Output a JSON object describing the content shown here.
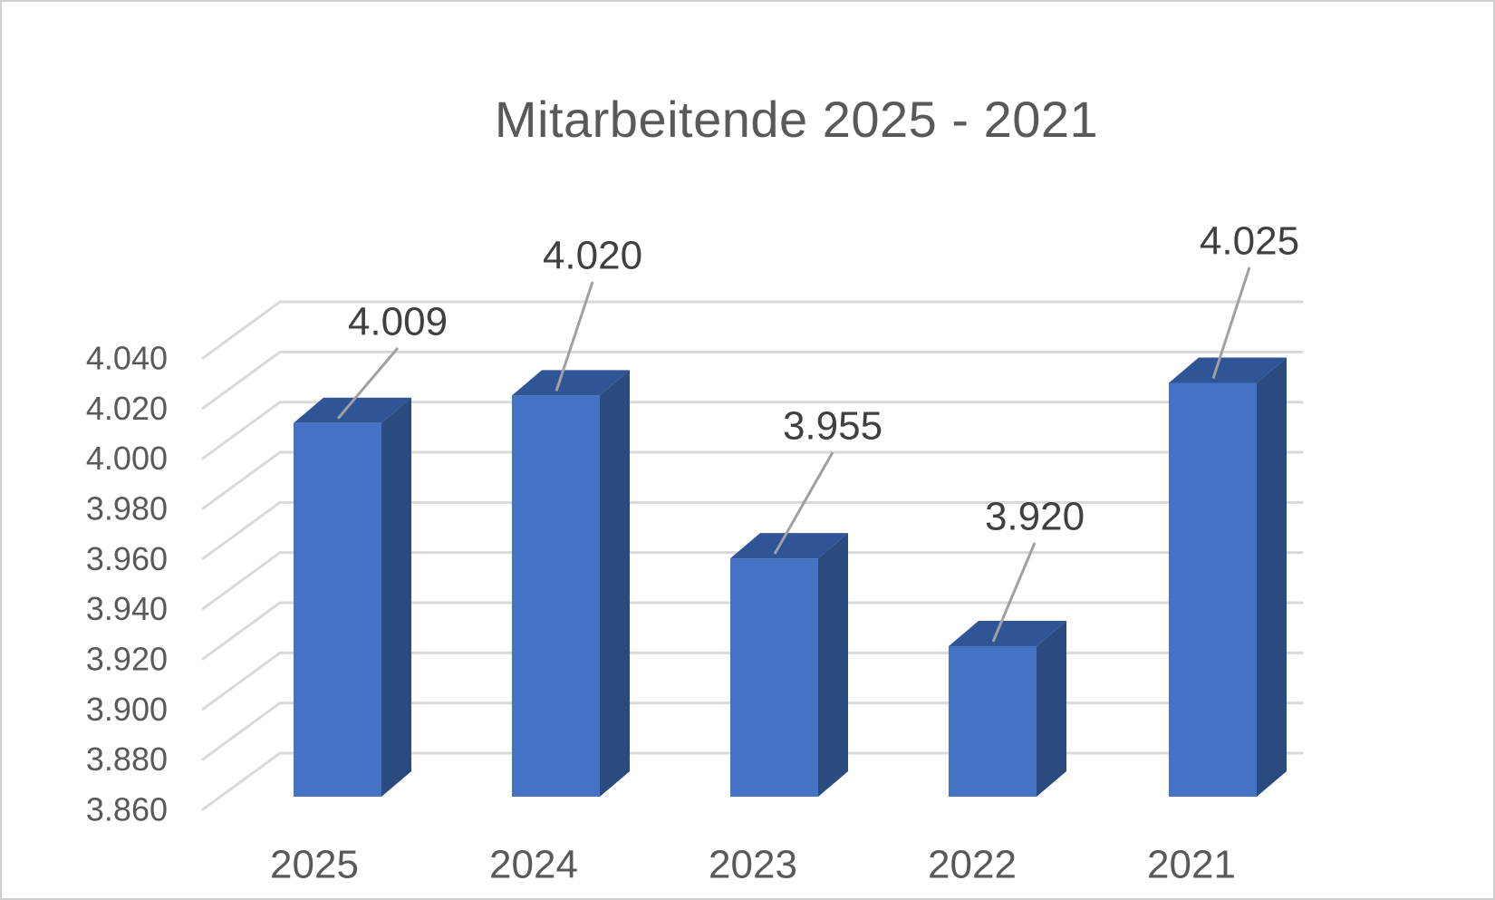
{
  "title": "Mitarbeitende 2025 - 2021",
  "chart_data": {
    "type": "bar",
    "variant": "3d-column",
    "title": "Mitarbeitende 2025 - 2021",
    "categories": [
      "2025",
      "2024",
      "2023",
      "2022",
      "2021"
    ],
    "values": [
      4009,
      4020,
      3955,
      3920,
      4025
    ],
    "data_labels": [
      "4.009",
      "4.020",
      "3.955",
      "3.920",
      "4.025"
    ],
    "series": [
      {
        "name": "Mitarbeitende",
        "values": [
          4009,
          4020,
          3955,
          3920,
          4025
        ]
      }
    ],
    "xlabel": "",
    "ylabel": "",
    "ylim": [
      3860,
      4040
    ],
    "ytick_step": 20,
    "ytick_labels": [
      "3.860",
      "3.880",
      "3.900",
      "3.920",
      "3.940",
      "3.960",
      "3.980",
      "4.000",
      "4.020",
      "4.040"
    ],
    "grid": true,
    "legend": false,
    "number_format": "German thousands separator (dot)",
    "colors": {
      "bar_front": "#4472C4",
      "bar_top": "#2F5597",
      "bar_side": "#2B4A7E",
      "gridline": "#D9D9D9",
      "leader_line": "#A0A0A0",
      "title_text": "#595959",
      "axis_text": "#595959",
      "data_label_text": "#404040",
      "background": "#FFFFFF"
    }
  }
}
